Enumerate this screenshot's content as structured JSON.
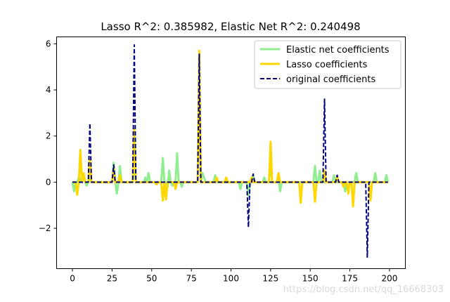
{
  "watermark": "https://blog.csdn.net/qq_16668303",
  "chart_data": {
    "type": "line",
    "title": "Lasso R^2: 0.385982, Elastic Net R^2: 0.240498",
    "xlabel": "",
    "ylabel": "",
    "xlim": [
      -10,
      210
    ],
    "ylim": [
      -3.75,
      6.3
    ],
    "xticks": [
      0,
      25,
      50,
      75,
      100,
      125,
      150,
      175,
      200
    ],
    "yticks": [
      -2,
      0,
      2,
      4,
      6
    ],
    "ytick_labels": [
      "−2",
      "0",
      "2",
      "4",
      "6"
    ],
    "grid": false,
    "legend_position": "top-right",
    "series": [
      {
        "name": "Elastic net coefficients",
        "color": "#90ee90",
        "style": "solid",
        "points": [
          [
            0,
            0
          ],
          [
            1,
            -0.4
          ],
          [
            2,
            0
          ],
          [
            3,
            0
          ],
          [
            4,
            0.2
          ],
          [
            5,
            0
          ],
          [
            6,
            0.3
          ],
          [
            7,
            0.2
          ],
          [
            8,
            0
          ],
          [
            9,
            -0.15
          ],
          [
            10,
            0
          ],
          [
            11,
            0.3
          ],
          [
            12,
            0
          ],
          [
            25,
            0
          ],
          [
            26,
            0.85
          ],
          [
            27,
            0
          ],
          [
            28,
            -0.5
          ],
          [
            29,
            0
          ],
          [
            30,
            0.7
          ],
          [
            31,
            0
          ],
          [
            38,
            0
          ],
          [
            39,
            0.5
          ],
          [
            40,
            0
          ],
          [
            45,
            0
          ],
          [
            46,
            0.2
          ],
          [
            47,
            0
          ],
          [
            48,
            0.4
          ],
          [
            49,
            0
          ],
          [
            56,
            0
          ],
          [
            57,
            1.05
          ],
          [
            58,
            0
          ],
          [
            59,
            0
          ],
          [
            60,
            -0.2
          ],
          [
            61,
            0.5
          ],
          [
            62,
            0
          ],
          [
            63,
            -0.15
          ],
          [
            64,
            0
          ],
          [
            65,
            0
          ],
          [
            66,
            1.25
          ],
          [
            67,
            0
          ],
          [
            68,
            0
          ],
          [
            69,
            -0.2
          ],
          [
            70,
            0
          ],
          [
            79,
            0
          ],
          [
            80,
            5.5
          ],
          [
            81,
            0
          ],
          [
            82,
            0.4
          ],
          [
            83,
            0.2
          ],
          [
            84,
            0
          ],
          [
            89,
            0
          ],
          [
            90,
            0.3
          ],
          [
            91,
            0
          ],
          [
            104,
            0
          ],
          [
            105,
            0
          ],
          [
            106,
            -0.3
          ],
          [
            107,
            0
          ],
          [
            110,
            0
          ],
          [
            111,
            -0.6
          ],
          [
            112,
            0
          ],
          [
            113,
            0
          ],
          [
            114,
            0.3
          ],
          [
            115,
            0
          ],
          [
            120,
            0
          ],
          [
            121,
            0.2
          ],
          [
            122,
            0
          ],
          [
            124,
            0
          ],
          [
            125,
            0.8
          ],
          [
            126,
            0
          ],
          [
            129,
            0
          ],
          [
            130,
            0.2
          ],
          [
            131,
            -0.4
          ],
          [
            132,
            0
          ],
          [
            150,
            0
          ],
          [
            152,
            0
          ],
          [
            153,
            0.7
          ],
          [
            154,
            0
          ],
          [
            155,
            0
          ],
          [
            156,
            0.5
          ],
          [
            157,
            0
          ],
          [
            163,
            0
          ],
          [
            164,
            0
          ],
          [
            165,
            0.3
          ],
          [
            166,
            0
          ],
          [
            171,
            0
          ],
          [
            172,
            -0.4
          ],
          [
            173,
            0
          ],
          [
            174,
            -0.4
          ],
          [
            175,
            0
          ],
          [
            178,
            0
          ],
          [
            179,
            0.4
          ],
          [
            180,
            0
          ],
          [
            190,
            0
          ],
          [
            191,
            0.4
          ],
          [
            192,
            0
          ],
          [
            197,
            0
          ],
          [
            198,
            0.3
          ],
          [
            199,
            0
          ]
        ]
      },
      {
        "name": "Lasso coefficients",
        "color": "#ffd700",
        "style": "solid",
        "points": [
          [
            0,
            0
          ],
          [
            2,
            0
          ],
          [
            3,
            -0.55
          ],
          [
            4,
            0
          ],
          [
            5,
            1.4
          ],
          [
            6,
            0
          ],
          [
            7,
            0.4
          ],
          [
            8,
            0
          ],
          [
            10,
            0
          ],
          [
            11,
            1.0
          ],
          [
            12,
            0
          ],
          [
            25,
            0
          ],
          [
            26,
            0.6
          ],
          [
            27,
            0
          ],
          [
            29,
            0
          ],
          [
            30,
            0.3
          ],
          [
            31,
            0
          ],
          [
            37,
            0
          ],
          [
            38,
            0
          ],
          [
            39,
            2.3
          ],
          [
            40,
            0
          ],
          [
            52,
            0
          ],
          [
            53,
            -0.1
          ],
          [
            54,
            0
          ],
          [
            56,
            0
          ],
          [
            57,
            -0.8
          ],
          [
            58,
            0
          ],
          [
            59,
            -0.75
          ],
          [
            60,
            0
          ],
          [
            64,
            0
          ],
          [
            65,
            -0.3
          ],
          [
            66,
            0
          ],
          [
            79,
            0
          ],
          [
            80,
            5.7
          ],
          [
            81,
            0
          ],
          [
            90,
            0
          ],
          [
            91,
            0.2
          ],
          [
            92,
            0
          ],
          [
            96,
            0
          ],
          [
            97,
            0.2
          ],
          [
            98,
            0
          ],
          [
            112,
            0
          ],
          [
            113,
            0.2
          ],
          [
            114,
            0
          ],
          [
            123,
            0
          ],
          [
            124,
            0
          ],
          [
            125,
            1.75
          ],
          [
            126,
            0
          ],
          [
            129,
            0
          ],
          [
            130,
            0.4
          ],
          [
            131,
            0
          ],
          [
            142,
            0
          ],
          [
            143,
            0
          ],
          [
            144,
            -0.9
          ],
          [
            145,
            0
          ],
          [
            152,
            0
          ],
          [
            153,
            -0.85
          ],
          [
            154,
            0
          ],
          [
            158,
            0
          ],
          [
            159,
            0.5
          ],
          [
            160,
            0
          ],
          [
            166,
            0
          ],
          [
            167,
            0.2
          ],
          [
            168,
            0
          ],
          [
            170,
            0
          ],
          [
            171,
            -0.2
          ],
          [
            172,
            0
          ],
          [
            173,
            0
          ],
          [
            174,
            -0.5
          ],
          [
            175,
            0
          ],
          [
            176,
            0
          ],
          [
            177,
            -1.05
          ],
          [
            178,
            0
          ],
          [
            187,
            0
          ],
          [
            188,
            -0.8
          ],
          [
            189,
            0
          ],
          [
            199,
            0
          ]
        ]
      },
      {
        "name": "original coefficients",
        "color": "#000080",
        "style": "dashed",
        "points": [
          [
            0,
            0
          ],
          [
            10,
            0
          ],
          [
            11,
            2.55
          ],
          [
            12,
            0
          ],
          [
            25,
            0
          ],
          [
            26,
            0.75
          ],
          [
            27,
            0
          ],
          [
            38,
            0
          ],
          [
            39,
            5.95
          ],
          [
            40,
            0
          ],
          [
            79,
            0
          ],
          [
            80,
            5.55
          ],
          [
            81,
            0
          ],
          [
            110,
            0
          ],
          [
            111,
            -1.95
          ],
          [
            112,
            0
          ],
          [
            113,
            0
          ],
          [
            114,
            0.35
          ],
          [
            115,
            0
          ],
          [
            158,
            0
          ],
          [
            159,
            3.6
          ],
          [
            160,
            0
          ],
          [
            166,
            0
          ],
          [
            167,
            0.3
          ],
          [
            168,
            0
          ],
          [
            185,
            0
          ],
          [
            186,
            -3.25
          ],
          [
            187,
            0
          ],
          [
            199,
            0
          ]
        ]
      }
    ]
  }
}
